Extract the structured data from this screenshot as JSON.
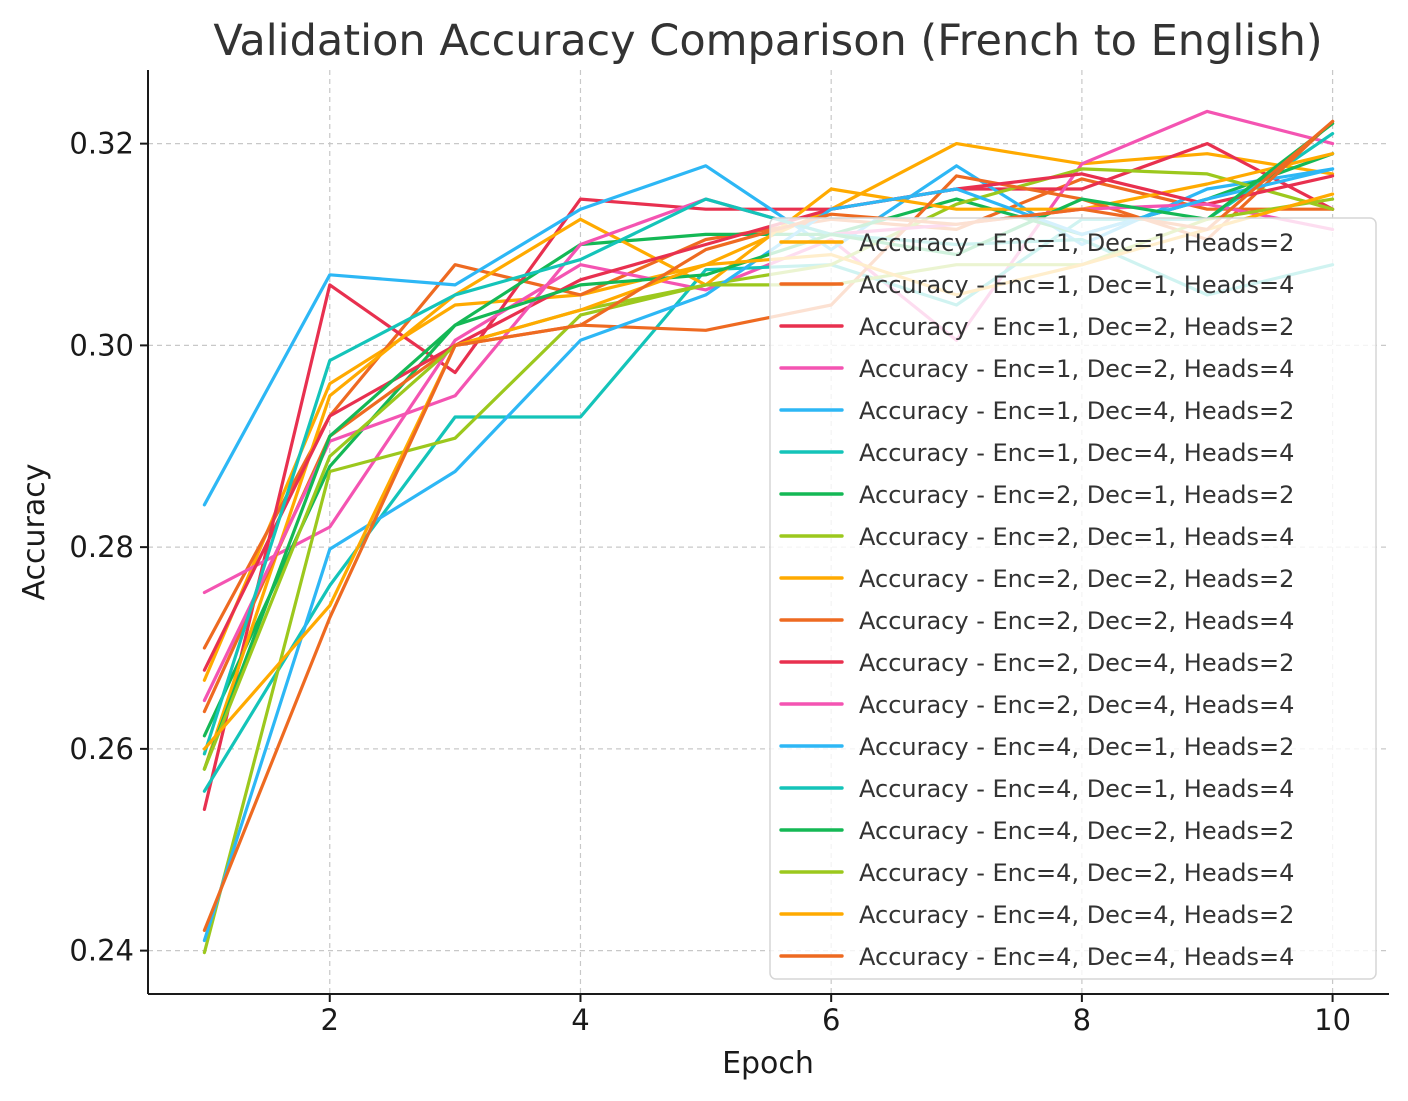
{
  "chart_data": {
    "type": "line",
    "title": "Validation Accuracy Comparison (French to English)",
    "xlabel": "Epoch",
    "ylabel": "Accuracy",
    "xlim": [
      0.55,
      10.45
    ],
    "ylim": [
      0.2357,
      0.3273
    ],
    "xticks": [
      2,
      4,
      6,
      8,
      10
    ],
    "yticks": [
      0.24,
      0.26,
      0.28,
      0.3,
      0.32
    ],
    "xtick_labels": [
      "2",
      "4",
      "6",
      "8",
      "10"
    ],
    "ytick_labels": [
      "0.24",
      "0.26",
      "0.28",
      "0.30",
      "0.32"
    ],
    "grid": true,
    "legend_position": "right",
    "x": [
      1,
      2,
      3,
      4,
      5,
      6,
      7,
      8,
      9,
      10
    ],
    "series": [
      {
        "name": "Accuracy - Enc=1, Dec=1, Heads=2",
        "color": "#FFAA00",
        "values": [
          0.2668,
          0.2962,
          0.304,
          0.305,
          0.308,
          0.3135,
          0.32,
          0.318,
          0.319,
          0.317
        ]
      },
      {
        "name": "Accuracy - Enc=1, Dec=1, Heads=4",
        "color": "#EE6A21",
        "values": [
          0.27,
          0.293,
          0.308,
          0.305,
          0.3105,
          0.3125,
          0.3115,
          0.3165,
          0.3135,
          0.3135
        ]
      },
      {
        "name": "Accuracy - Enc=1, Dec=2, Heads=2",
        "color": "#E8304F",
        "values": [
          0.254,
          0.306,
          0.2973,
          0.3145,
          0.3135,
          0.3135,
          0.3155,
          0.3155,
          0.32,
          0.3135
        ]
      },
      {
        "name": "Accuracy - Enc=1, Dec=2, Heads=4",
        "color": "#F454B2",
        "values": [
          0.2755,
          0.282,
          0.3005,
          0.308,
          0.3055,
          0.3105,
          0.3005,
          0.318,
          0.3232,
          0.32
        ]
      },
      {
        "name": "Accuracy - Enc=1, Dec=4, Heads=2",
        "color": "#2DB7F5",
        "values": [
          0.2842,
          0.307,
          0.306,
          0.3135,
          0.3178,
          0.3095,
          0.3178,
          0.31,
          0.3155,
          0.3175
        ]
      },
      {
        "name": "Accuracy - Enc=1, Dec=4, Heads=4",
        "color": "#14C4B9",
        "values": [
          0.2558,
          0.2762,
          0.2929,
          0.2929,
          0.3075,
          0.308,
          0.304,
          0.3125,
          0.3125,
          0.321
        ]
      },
      {
        "name": "Accuracy - Enc=2, Dec=1, Heads=2",
        "color": "#14B855",
        "values": [
          0.2613,
          0.288,
          0.302,
          0.31,
          0.311,
          0.311,
          0.3145,
          0.311,
          0.3145,
          0.319
        ]
      },
      {
        "name": "Accuracy - Enc=2, Dec=1, Heads=4",
        "color": "#9CC81D",
        "values": [
          0.2398,
          0.2875,
          0.2908,
          0.303,
          0.306,
          0.308,
          0.314,
          0.3175,
          0.317,
          0.3135
        ]
      },
      {
        "name": "Accuracy - Enc=2, Dec=2, Heads=2",
        "color": "#FFAA00",
        "values": [
          0.258,
          0.295,
          0.305,
          0.3125,
          0.306,
          0.3155,
          0.3135,
          0.3135,
          0.316,
          0.319
        ]
      },
      {
        "name": "Accuracy - Enc=2, Dec=2, Heads=4",
        "color": "#EE6A21",
        "values": [
          0.2637,
          0.291,
          0.3,
          0.302,
          0.3015,
          0.304,
          0.3168,
          0.3145,
          0.3105,
          0.3222
        ]
      },
      {
        "name": "Accuracy - Enc=2, Dec=4, Heads=2",
        "color": "#E8304F",
        "values": [
          0.2678,
          0.293,
          0.3,
          0.3065,
          0.31,
          0.3135,
          0.3155,
          0.317,
          0.314,
          0.3168
        ]
      },
      {
        "name": "Accuracy - Enc=2, Dec=4, Heads=4",
        "color": "#F454B2",
        "values": [
          0.2648,
          0.2905,
          0.295,
          0.31,
          0.3145,
          0.311,
          0.312,
          0.3135,
          0.314,
          0.3115
        ]
      },
      {
        "name": "Accuracy - Enc=4, Dec=1, Heads=2",
        "color": "#2DB7F5",
        "values": [
          0.241,
          0.2798,
          0.2875,
          0.3005,
          0.305,
          0.3135,
          0.3155,
          0.311,
          0.3145,
          0.3175
        ]
      },
      {
        "name": "Accuracy - Enc=4, Dec=1, Heads=4",
        "color": "#14C4B9",
        "values": [
          0.2595,
          0.2985,
          0.305,
          0.3085,
          0.3145,
          0.311,
          0.31,
          0.3105,
          0.305,
          0.308
        ]
      },
      {
        "name": "Accuracy - Enc=4, Dec=2, Heads=2",
        "color": "#14B855",
        "values": [
          0.258,
          0.291,
          0.302,
          0.306,
          0.307,
          0.311,
          0.309,
          0.3145,
          0.3125,
          0.322
        ]
      },
      {
        "name": "Accuracy - Enc=4, Dec=2, Heads=4",
        "color": "#9CC81D",
        "values": [
          0.258,
          0.289,
          0.3,
          0.3035,
          0.306,
          0.306,
          0.308,
          0.308,
          0.3125,
          0.3145
        ]
      },
      {
        "name": "Accuracy - Enc=4, Dec=4, Heads=2",
        "color": "#FFAA00",
        "values": [
          0.26,
          0.2742,
          0.3,
          0.3035,
          0.308,
          0.309,
          0.305,
          0.308,
          0.3115,
          0.315
        ]
      },
      {
        "name": "Accuracy - Enc=4, Dec=4, Heads=4",
        "color": "#EE6A21",
        "values": [
          0.242,
          0.273,
          0.3,
          0.302,
          0.3095,
          0.313,
          0.312,
          0.3135,
          0.3115,
          0.3222
        ]
      }
    ]
  }
}
